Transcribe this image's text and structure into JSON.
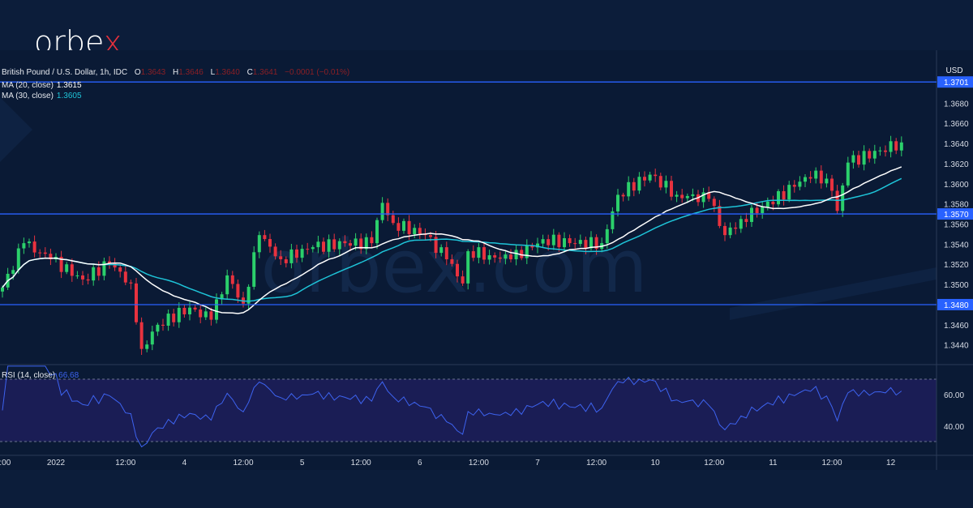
{
  "logo": {
    "text_main": "orbe",
    "text_accent": "x"
  },
  "legend": {
    "symbol": "British Pound / U.S. Dollar, 1h, IDC",
    "o_label": "O",
    "o": "1.3643",
    "h_label": "H",
    "h": "1.3646",
    "l_label": "L",
    "l": "1.3640",
    "c_label": "C",
    "c": "1.3641",
    "change": "−0.0001 (−0.01%)",
    "ma20_label": "MA (20, close)",
    "ma20": "1.3615",
    "ma30_label": "MA (30, close)",
    "ma30": "1.3605",
    "rsi_label": "RSI (14, close)",
    "rsi": "66.68"
  },
  "colors": {
    "up": "#2bd06b",
    "down": "#e8323f",
    "ma20": "#ffffff",
    "ma30": "#1ec4d8",
    "hline": "#2962ff",
    "rsi": "#3d63f0",
    "ohlc": "#8a1f25"
  },
  "chart_data": {
    "type": "candlestick",
    "currency": "USD",
    "y_ticks": [
      "1.3680",
      "1.3660",
      "1.3640",
      "1.3620",
      "1.3600",
      "1.3580",
      "1.3560",
      "1.3540",
      "1.3520",
      "1.3500",
      "1.3460",
      "1.3440"
    ],
    "ylim": [
      1.3428,
      1.3715
    ],
    "horizontal_levels": [
      "1.3701",
      "1.3570",
      "1.3480"
    ],
    "x_labels": [
      ":00",
      "2022",
      "12:00",
      "4",
      "12:00",
      "5",
      "12:00",
      "6",
      "12:00",
      "7",
      "12:00",
      "10",
      "12:00",
      "11",
      "12:00",
      "12"
    ],
    "x_label_index": [
      0.5,
      10,
      23,
      34,
      45,
      56,
      67,
      78,
      89,
      100,
      111,
      122,
      133,
      144,
      155,
      166
    ],
    "candle_count": 169,
    "close_keypoints": [
      [
        0,
        1.3497
      ],
      [
        4,
        1.3541
      ],
      [
        9,
        1.3525
      ],
      [
        15,
        1.3505
      ],
      [
        20,
        1.3521
      ],
      [
        24,
        1.3501
      ],
      [
        26,
        1.3436
      ],
      [
        29,
        1.346
      ],
      [
        35,
        1.3477
      ],
      [
        39,
        1.3465
      ],
      [
        42,
        1.3509
      ],
      [
        45,
        1.3481
      ],
      [
        48,
        1.3549
      ],
      [
        52,
        1.3525
      ],
      [
        58,
        1.3537
      ],
      [
        64,
        1.3541
      ],
      [
        69,
        1.3541
      ],
      [
        71,
        1.3581
      ],
      [
        73,
        1.3561
      ],
      [
        79,
        1.3549
      ],
      [
        83,
        1.3525
      ],
      [
        86,
        1.3501
      ],
      [
        87,
        1.3533
      ],
      [
        91,
        1.3529
      ],
      [
        95,
        1.3525
      ],
      [
        101,
        1.3545
      ],
      [
        106,
        1.3541
      ],
      [
        112,
        1.3541
      ],
      [
        115,
        1.3589
      ],
      [
        121,
        1.3609
      ],
      [
        126,
        1.3589
      ],
      [
        132,
        1.3585
      ],
      [
        135,
        1.3549
      ],
      [
        138,
        1.3565
      ],
      [
        142,
        1.3577
      ],
      [
        148,
        1.3597
      ],
      [
        152,
        1.3613
      ],
      [
        155,
        1.3593
      ],
      [
        156,
        1.3573
      ],
      [
        158,
        1.3621
      ],
      [
        164,
        1.3633
      ],
      [
        168,
        1.3641
      ]
    ],
    "rsi_ticks": [
      "60.00",
      "40.00"
    ],
    "rsi_bands": [
      70,
      30
    ]
  }
}
